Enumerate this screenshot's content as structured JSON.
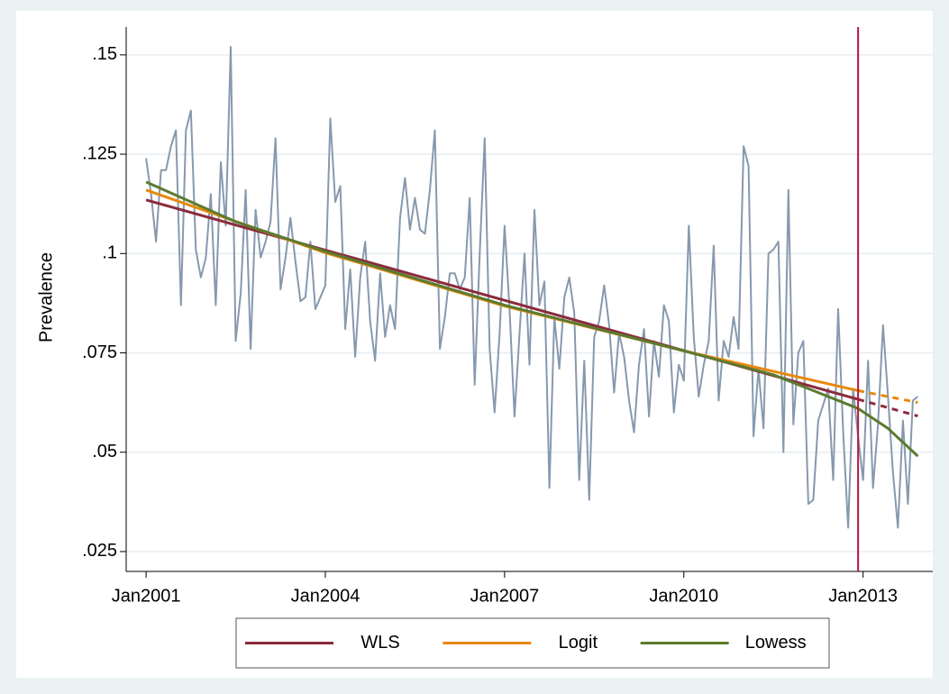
{
  "chart_data": {
    "type": "line",
    "ylabel": "Prevalence",
    "x": [
      "2001-01",
      "2001-02",
      "2001-03",
      "2001-04",
      "2001-05",
      "2001-06",
      "2001-07",
      "2001-08",
      "2001-09",
      "2001-10",
      "2001-11",
      "2001-12",
      "2002-01",
      "2002-02",
      "2002-03",
      "2002-04",
      "2002-05",
      "2002-06",
      "2002-07",
      "2002-08",
      "2002-09",
      "2002-10",
      "2002-11",
      "2002-12",
      "2003-01",
      "2003-02",
      "2003-03",
      "2003-04",
      "2003-05",
      "2003-06",
      "2003-07",
      "2003-08",
      "2003-09",
      "2003-10",
      "2003-11",
      "2003-12",
      "2004-01",
      "2004-02",
      "2004-03",
      "2004-04",
      "2004-05",
      "2004-06",
      "2004-07",
      "2004-08",
      "2004-09",
      "2004-10",
      "2004-11",
      "2004-12",
      "2005-01",
      "2005-02",
      "2005-03",
      "2005-04",
      "2005-05",
      "2005-06",
      "2005-07",
      "2005-08",
      "2005-09",
      "2005-10",
      "2005-11",
      "2005-12",
      "2006-01",
      "2006-02",
      "2006-03",
      "2006-04",
      "2006-05",
      "2006-06",
      "2006-07",
      "2006-08",
      "2006-09",
      "2006-10",
      "2006-11",
      "2006-12",
      "2007-01",
      "2007-02",
      "2007-03",
      "2007-04",
      "2007-05",
      "2007-06",
      "2007-07",
      "2007-08",
      "2007-09",
      "2007-10",
      "2007-11",
      "2007-12",
      "2008-01",
      "2008-02",
      "2008-03",
      "2008-04",
      "2008-05",
      "2008-06",
      "2008-07",
      "2008-08",
      "2008-09",
      "2008-10",
      "2008-11",
      "2008-12",
      "2009-01",
      "2009-02",
      "2009-03",
      "2009-04",
      "2009-05",
      "2009-06",
      "2009-07",
      "2009-08",
      "2009-09",
      "2009-10",
      "2009-11",
      "2009-12",
      "2010-01",
      "2010-02",
      "2010-03",
      "2010-04",
      "2010-05",
      "2010-06",
      "2010-07",
      "2010-08",
      "2010-09",
      "2010-10",
      "2010-11",
      "2010-12",
      "2011-01",
      "2011-02",
      "2011-03",
      "2011-04",
      "2011-05",
      "2011-06",
      "2011-07",
      "2011-08",
      "2011-09",
      "2011-10",
      "2011-11",
      "2011-12",
      "2012-01",
      "2012-02",
      "2012-03",
      "2012-04",
      "2012-05",
      "2012-06",
      "2012-07",
      "2012-08",
      "2012-09",
      "2012-10",
      "2012-11",
      "2012-12",
      "2013-01",
      "2013-02",
      "2013-03",
      "2013-04",
      "2013-05",
      "2013-06",
      "2013-07",
      "2013-08",
      "2013-09",
      "2013-10",
      "2013-11",
      "2013-12"
    ],
    "series": [
      {
        "color": "#8699ae",
        "values": [
          0.124,
          0.115,
          0.103,
          0.121,
          0.121,
          0.127,
          0.131,
          0.087,
          0.131,
          0.136,
          0.101,
          0.094,
          0.099,
          0.115,
          0.087,
          0.123,
          0.107,
          0.152,
          0.078,
          0.09,
          0.116,
          0.076,
          0.111,
          0.099,
          0.103,
          0.108,
          0.129,
          0.091,
          0.099,
          0.109,
          0.098,
          0.088,
          0.089,
          0.103,
          0.086,
          0.089,
          0.092,
          0.134,
          0.113,
          0.117,
          0.081,
          0.096,
          0.074,
          0.094,
          0.103,
          0.083,
          0.073,
          0.095,
          0.079,
          0.087,
          0.081,
          0.109,
          0.119,
          0.106,
          0.114,
          0.106,
          0.105,
          0.116,
          0.131,
          0.076,
          0.084,
          0.095,
          0.095,
          0.091,
          0.094,
          0.114,
          0.067,
          0.1,
          0.129,
          0.076,
          0.06,
          0.08,
          0.107,
          0.086,
          0.059,
          0.08,
          0.1,
          0.072,
          0.111,
          0.087,
          0.093,
          0.041,
          0.084,
          0.071,
          0.089,
          0.094,
          0.085,
          0.043,
          0.073,
          0.038,
          0.079,
          0.083,
          0.092,
          0.082,
          0.065,
          0.08,
          0.074,
          0.063,
          0.055,
          0.072,
          0.081,
          0.059,
          0.078,
          0.069,
          0.087,
          0.083,
          0.06,
          0.072,
          0.068,
          0.107,
          0.079,
          0.064,
          0.072,
          0.078,
          0.102,
          0.063,
          0.078,
          0.074,
          0.084,
          0.076,
          0.127,
          0.122,
          0.054,
          0.071,
          0.056,
          0.1,
          0.101,
          0.103,
          0.05,
          0.116,
          0.057,
          0.075,
          0.078,
          0.037,
          0.038,
          0.058,
          0.062,
          0.066,
          0.043,
          0.086,
          0.055,
          0.031,
          0.066,
          0.054,
          0.043,
          0.073,
          0.041,
          0.057,
          0.082,
          0.064,
          0.045,
          0.031,
          0.058,
          0.037,
          0.063,
          0.064
        ]
      },
      {
        "name": "WLS",
        "color": "#8c2b3c",
        "forecast_dash": true,
        "x": [
          "2001-01",
          "2012-12",
          "2013-12"
        ],
        "values": [
          0.1135,
          0.0633,
          0.0591
        ]
      },
      {
        "name": "Logit",
        "color": "#e8890c",
        "forecast_dash": true,
        "x": [
          "2001-01",
          "2004-01",
          "2007-01",
          "2010-01",
          "2012-12",
          "2013-12"
        ],
        "values": [
          0.116,
          0.1002,
          0.0868,
          0.0755,
          0.0655,
          0.0625
        ]
      },
      {
        "name": "Lowess",
        "color": "#5b7b2f",
        "x": [
          "2001-01",
          "2002-07",
          "2004-01",
          "2007-01",
          "2010-01",
          "2011-07",
          "2012-12",
          "2013-06",
          "2013-12"
        ],
        "values": [
          0.118,
          0.108,
          0.1005,
          0.087,
          0.0755,
          0.0695,
          0.061,
          0.056,
          0.049
        ]
      }
    ],
    "vline": {
      "x": "2012-12",
      "color": "#b3173f"
    },
    "xlim": [
      "2000-09",
      "2014-03"
    ],
    "xticks": [
      {
        "value": "2001-01",
        "label": "Jan2001"
      },
      {
        "value": "2004-01",
        "label": "Jan2004"
      },
      {
        "value": "2007-01",
        "label": "Jan2007"
      },
      {
        "value": "2010-01",
        "label": "Jan2010"
      },
      {
        "value": "2013-01",
        "label": "Jan2013"
      }
    ],
    "ylim": [
      0.02,
      0.157
    ],
    "yticks": [
      {
        "value": 0.025,
        "label": ".025"
      },
      {
        "value": 0.05,
        "label": ".05"
      },
      {
        "value": 0.075,
        "label": ".075"
      },
      {
        "value": 0.1,
        "label": ".1"
      },
      {
        "value": 0.125,
        "label": ".125"
      },
      {
        "value": 0.15,
        "label": ".15"
      }
    ],
    "grid": true,
    "legend": "bottom"
  }
}
